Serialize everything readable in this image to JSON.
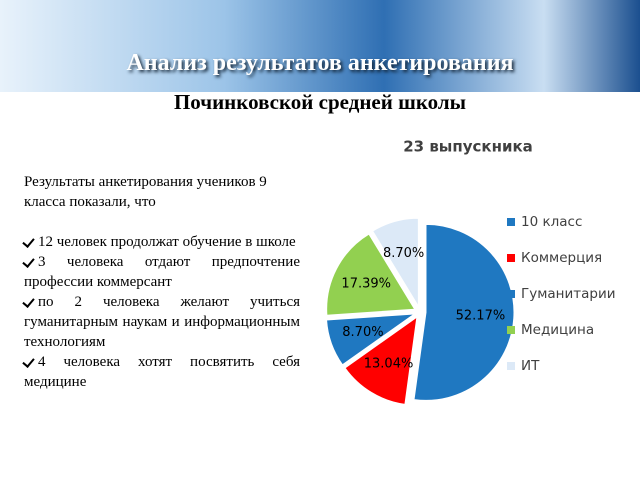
{
  "slide": {
    "title": "Анализ результатов анкетирования",
    "subtitle": "Починковской средней школы",
    "intro": "Результаты анкетирования учеников 9 класса показали, что",
    "bullets": [
      "12 человек продолжат обучение в школе",
      "3 человека отдают предпочтение профессии коммерсант",
      "по 2 человека желают учиться гуманитарным наукам и информационным технологиям",
      "4 человека хотят посвятить себя медицине"
    ]
  },
  "chart_data": {
    "type": "pie",
    "title": "23 выпускника",
    "categories": [
      "10 класс",
      "Коммерция",
      "Гуманитарии",
      "Медицина",
      "ИТ"
    ],
    "values": [
      52.17,
      13.04,
      8.7,
      17.39,
      8.7
    ],
    "value_labels": [
      "52.17%",
      "13.04%",
      "8.70%",
      "17.39%",
      "8.70%"
    ],
    "colors": [
      "#1f78c1",
      "#ff0000",
      "#1f78c1",
      "#92d050",
      "#dce9f7"
    ],
    "legend": "right"
  }
}
